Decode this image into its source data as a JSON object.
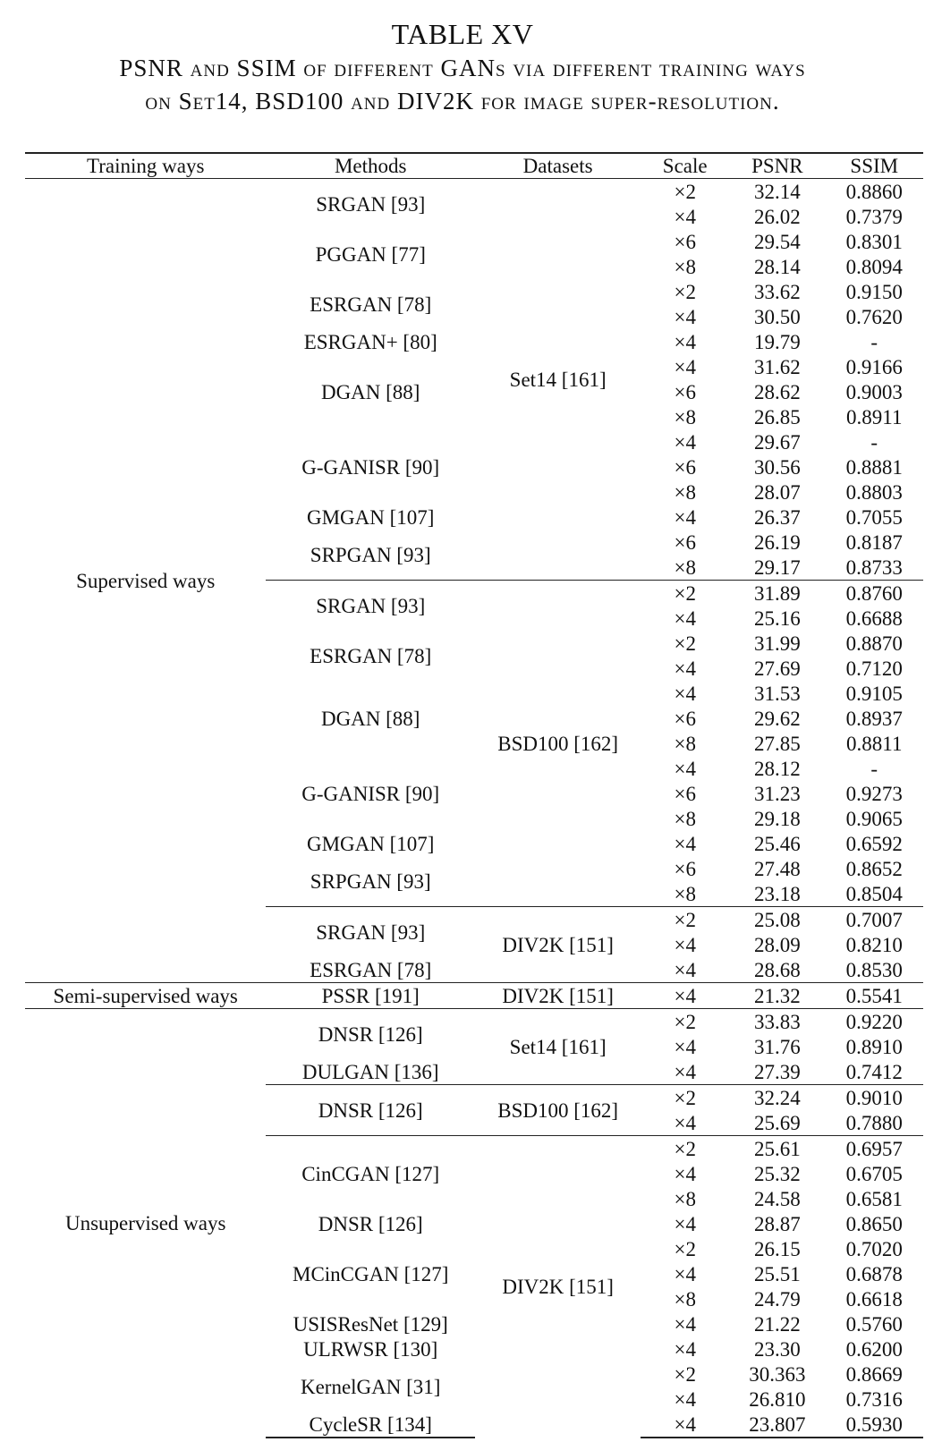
{
  "caption": {
    "number": "TABLE XV",
    "line1": "PSNR and SSIM of different GANs via different training ways",
    "line2": "on Set14, BSD100 and DIV2K for image super-resolution."
  },
  "headers": [
    "Training ways",
    "Methods",
    "Datasets",
    "Scale",
    "PSNR",
    "SSIM"
  ],
  "groups": [
    {
      "training": "Supervised ways",
      "datasets": [
        {
          "name": "Set14 [161]",
          "methods": [
            {
              "name": "SRGAN [93]",
              "rows": [
                [
                  "×2",
                  "32.14",
                  "0.8860"
                ],
                [
                  "×4",
                  "26.02",
                  "0.7379"
                ]
              ]
            },
            {
              "name": "PGGAN [77]",
              "rows": [
                [
                  "×6",
                  "29.54",
                  "0.8301"
                ],
                [
                  "×8",
                  "28.14",
                  "0.8094"
                ]
              ]
            },
            {
              "name": "ESRGAN [78]",
              "rows": [
                [
                  "×2",
                  "33.62",
                  "0.9150"
                ],
                [
                  "×4",
                  "30.50",
                  "0.7620"
                ]
              ]
            },
            {
              "name": "ESRGAN+ [80]",
              "rows": [
                [
                  "×4",
                  "19.79",
                  "-"
                ]
              ]
            },
            {
              "name": "DGAN [88]",
              "rows": [
                [
                  "×4",
                  "31.62",
                  "0.9166"
                ],
                [
                  "×6",
                  "28.62",
                  "0.9003"
                ],
                [
                  "×8",
                  "26.85",
                  "0.8911"
                ]
              ]
            },
            {
              "name": "G-GANISR [90]",
              "rows": [
                [
                  "×4",
                  "29.67",
                  "-"
                ],
                [
                  "×6",
                  "30.56",
                  "0.8881"
                ],
                [
                  "×8",
                  "28.07",
                  "0.8803"
                ]
              ]
            },
            {
              "name": "GMGAN [107]",
              "rows": [
                [
                  "×4",
                  "26.37",
                  "0.7055"
                ]
              ]
            },
            {
              "name": "SRPGAN [93]",
              "rows": [
                [
                  "×6",
                  "26.19",
                  "0.8187"
                ],
                [
                  "×8",
                  "29.17",
                  "0.8733"
                ]
              ]
            }
          ]
        },
        {
          "name": "BSD100 [162]",
          "methods": [
            {
              "name": "SRGAN [93]",
              "rows": [
                [
                  "×2",
                  "31.89",
                  "0.8760"
                ],
                [
                  "×4",
                  "25.16",
                  "0.6688"
                ]
              ]
            },
            {
              "name": "ESRGAN [78]",
              "rows": [
                [
                  "×2",
                  "31.99",
                  "0.8870"
                ],
                [
                  "×4",
                  "27.69",
                  "0.7120"
                ]
              ]
            },
            {
              "name": "DGAN [88]",
              "rows": [
                [
                  "×4",
                  "31.53",
                  "0.9105"
                ],
                [
                  "×6",
                  "29.62",
                  "0.8937"
                ],
                [
                  "×8",
                  "27.85",
                  "0.8811"
                ]
              ]
            },
            {
              "name": "G-GANISR [90]",
              "rows": [
                [
                  "×4",
                  "28.12",
                  "-"
                ],
                [
                  "×6",
                  "31.23",
                  "0.9273"
                ],
                [
                  "×8",
                  "29.18",
                  "0.9065"
                ]
              ]
            },
            {
              "name": "GMGAN [107]",
              "rows": [
                [
                  "×4",
                  "25.46",
                  "0.6592"
                ]
              ]
            },
            {
              "name": "SRPGAN [93]",
              "rows": [
                [
                  "×6",
                  "27.48",
                  "0.8652"
                ],
                [
                  "×8",
                  "23.18",
                  "0.8504"
                ]
              ]
            }
          ]
        },
        {
          "name": "DIV2K [151]",
          "methods": [
            {
              "name": "SRGAN [93]",
              "rows": [
                [
                  "×2",
                  "25.08",
                  "0.7007"
                ],
                [
                  "×4",
                  "28.09",
                  "0.8210"
                ]
              ]
            },
            {
              "name": "ESRGAN [78]",
              "rows": [
                [
                  "×4",
                  "28.68",
                  "0.8530"
                ]
              ]
            }
          ]
        }
      ]
    },
    {
      "training": "Semi-supervised ways",
      "datasets": [
        {
          "name": "DIV2K [151]",
          "methods": [
            {
              "name": "PSSR [191]",
              "rows": [
                [
                  "×4",
                  "21.32",
                  "0.5541"
                ]
              ]
            }
          ]
        }
      ]
    },
    {
      "training": "Unsupervised ways",
      "datasets": [
        {
          "name": "Set14 [161]",
          "methods": [
            {
              "name": "DNSR [126]",
              "rows": [
                [
                  "×2",
                  "33.83",
                  "0.9220"
                ],
                [
                  "×4",
                  "31.76",
                  "0.8910"
                ]
              ]
            },
            {
              "name": "DULGAN [136]",
              "rows": [
                [
                  "×4",
                  "27.39",
                  "0.7412"
                ]
              ]
            }
          ]
        },
        {
          "name": "BSD100 [162]",
          "methods": [
            {
              "name": "DNSR [126]",
              "rows": [
                [
                  "×2",
                  "32.24",
                  "0.9010"
                ],
                [
                  "×4",
                  "25.69",
                  "0.7880"
                ]
              ]
            }
          ]
        },
        {
          "name": "DIV2K [151]",
          "methods": [
            {
              "name": "CinCGAN [127]",
              "rows": [
                [
                  "×2",
                  "25.61",
                  "0.6957"
                ],
                [
                  "×4",
                  "25.32",
                  "0.6705"
                ],
                [
                  "×8",
                  "24.58",
                  "0.6581"
                ]
              ]
            },
            {
              "name": "DNSR [126]",
              "rows": [
                [
                  "×4",
                  "28.87",
                  "0.8650"
                ]
              ]
            },
            {
              "name": "MCinCGAN [127]",
              "rows": [
                [
                  "×2",
                  "26.15",
                  "0.7020"
                ],
                [
                  "×4",
                  "25.51",
                  "0.6878"
                ],
                [
                  "×8",
                  "24.79",
                  "0.6618"
                ]
              ]
            },
            {
              "name": "USISResNet [129]",
              "rows": [
                [
                  "×4",
                  "21.22",
                  "0.5760"
                ]
              ]
            },
            {
              "name": "ULRWSR [130]",
              "rows": [
                [
                  "×4",
                  "23.30",
                  "0.6200"
                ]
              ]
            },
            {
              "name": "KernelGAN [31]",
              "rows": [
                [
                  "×2",
                  "30.363",
                  "0.8669"
                ],
                [
                  "×4",
                  "26.810",
                  "0.7316"
                ]
              ]
            },
            {
              "name": "CycleSR [134]",
              "rows": [
                [
                  "×4",
                  "23.807",
                  "0.5930"
                ]
              ]
            }
          ]
        }
      ]
    }
  ]
}
